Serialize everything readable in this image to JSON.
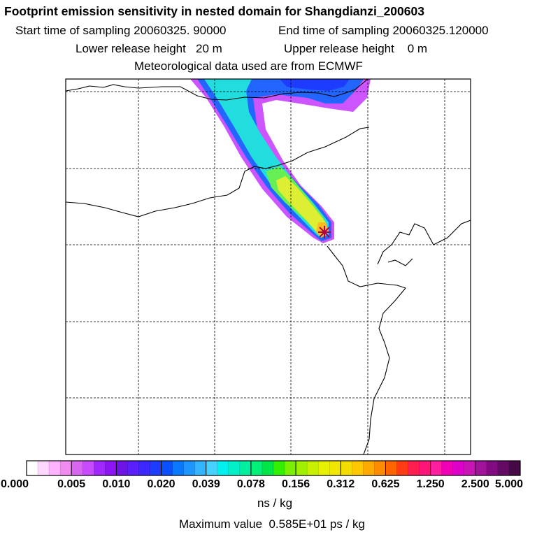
{
  "header": {
    "title": "Footprint emission sensitivity in nested domain for Shangdianzi_200603",
    "start_time": "Start time of sampling 20060325. 90000",
    "end_time": "End time of sampling 20060325.120000",
    "lower_height": "Lower release height   20 m",
    "upper_height": "Upper release height    0 m",
    "met_data": "Meteorological data used are from ECMWF"
  },
  "colorbar": {
    "ticks": [
      "0.000",
      "0.005",
      "0.010",
      "0.020",
      "0.039",
      "0.078",
      "0.156",
      "0.312",
      "0.625",
      "1.250",
      "2.500",
      "5.000"
    ],
    "colors": [
      "#ffffff",
      "#ffd8ff",
      "#ffb3ff",
      "#f08cf0",
      "#d966f0",
      "#c84bff",
      "#a028ff",
      "#8c14f5",
      "#6e14e6",
      "#5a1eff",
      "#3c28ff",
      "#1e3cff",
      "#0a50ff",
      "#0a78ff",
      "#1e96ff",
      "#32b4ff",
      "#46d2ff",
      "#00f0f0",
      "#00f0c8",
      "#00f0a0",
      "#00f078",
      "#00e646",
      "#32f000",
      "#78f000",
      "#a0f000",
      "#c8f000",
      "#e6f000",
      "#f0e600",
      "#f5dc00",
      "#ffc800",
      "#ffaa00",
      "#ff8c00",
      "#ff6400",
      "#ff3c14",
      "#ff1e50",
      "#ff1478",
      "#ff1ea0",
      "#f000b4",
      "#dc00c8",
      "#c814b4",
      "#a0149b",
      "#820a82",
      "#640a64",
      "#460a46",
      "#280a28"
    ],
    "unit": "ns / kg"
  },
  "max_value": "Maximum value  0.585E+01 ps / kg",
  "map": {
    "plume_colors": {
      "outer": "#cc55ff",
      "blue": "#2266ff",
      "cyan": "#22dddd",
      "green": "#66ee55",
      "yellow": "#ddee33",
      "orange": "#ffbb22"
    },
    "receptor_marker": "star-marker",
    "coastline_color": "#000000",
    "grid": "dashed"
  }
}
